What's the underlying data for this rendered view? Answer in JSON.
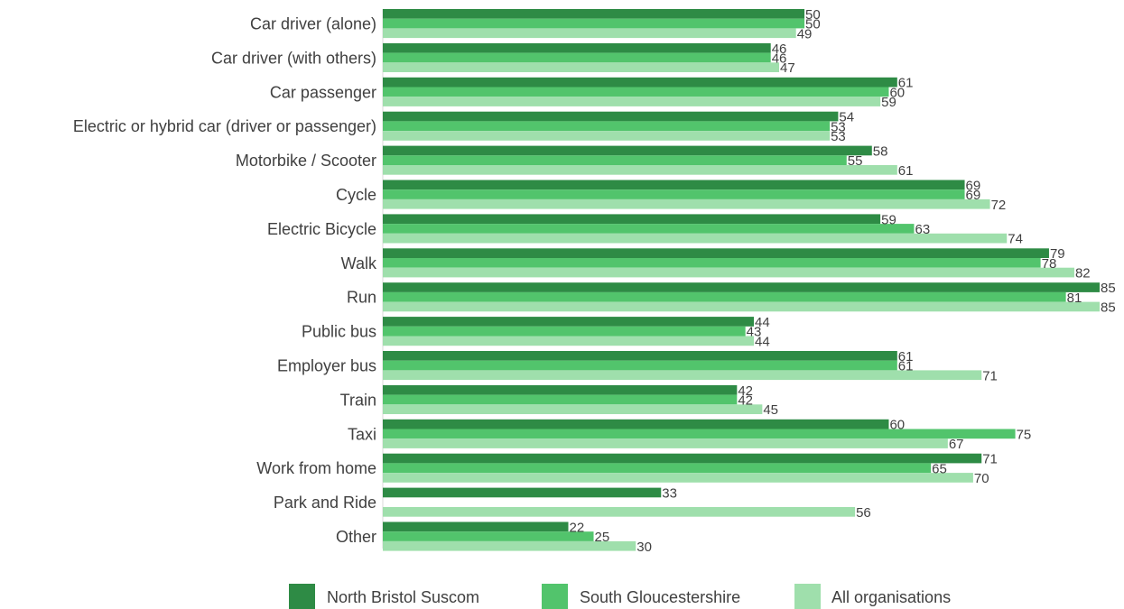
{
  "chart_data": {
    "type": "bar",
    "orientation": "horizontal",
    "title": "",
    "xlabel": "",
    "ylabel": "",
    "xlim": [
      0,
      85
    ],
    "grid": false,
    "legend_position": "bottom",
    "categories": [
      "Car driver (alone)",
      "Car driver (with others)",
      "Car passenger",
      "Electric or hybrid car (driver or passenger)",
      "Motorbike / Scooter",
      "Cycle",
      "Electric Bicycle",
      "Walk",
      "Run",
      "Public bus",
      "Employer bus",
      "Train",
      "Taxi",
      "Work from home",
      "Park and Ride",
      "Other"
    ],
    "series": [
      {
        "name": "North Bristol Suscom",
        "color": "#2e8b45",
        "values": [
          50,
          46,
          61,
          54,
          58,
          69,
          59,
          79,
          85,
          44,
          61,
          42,
          60,
          71,
          33,
          22
        ]
      },
      {
        "name": "South Gloucestershire",
        "color": "#52c46c",
        "values": [
          50,
          46,
          60,
          53,
          55,
          69,
          63,
          78,
          81,
          43,
          61,
          42,
          75,
          65,
          null,
          25
        ]
      },
      {
        "name": "All organisations",
        "color": "#9fdfac",
        "values": [
          49,
          47,
          59,
          53,
          61,
          72,
          74,
          82,
          85,
          44,
          71,
          45,
          67,
          70,
          56,
          30
        ]
      }
    ]
  }
}
